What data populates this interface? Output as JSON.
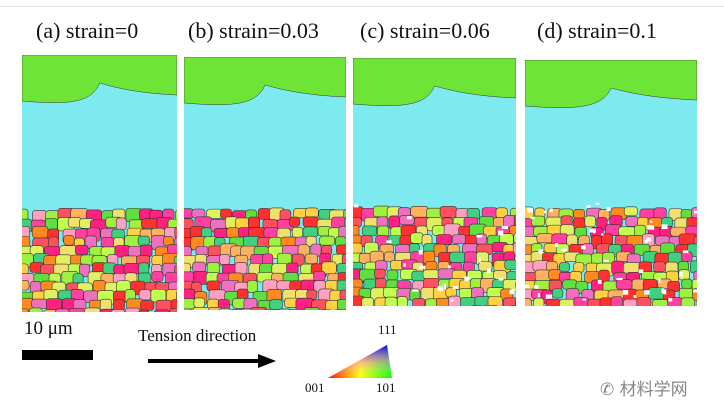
{
  "panels": [
    {
      "label": "(a) strain=0",
      "damage": 0
    },
    {
      "label": "(b) strain=0.03",
      "damage": 0
    },
    {
      "label": "(c) strain=0.06",
      "damage": 0.5
    },
    {
      "label": "(d) strain=0.1",
      "damage": 1
    }
  ],
  "scale": {
    "text": "10 μm"
  },
  "tension": {
    "text": "Tension direction"
  },
  "ipf": {
    "top": "111",
    "left": "001",
    "right": "101"
  },
  "watermark": "材料学网",
  "colors": {
    "green": "#6ee436",
    "cyan": "#7deaf0"
  }
}
